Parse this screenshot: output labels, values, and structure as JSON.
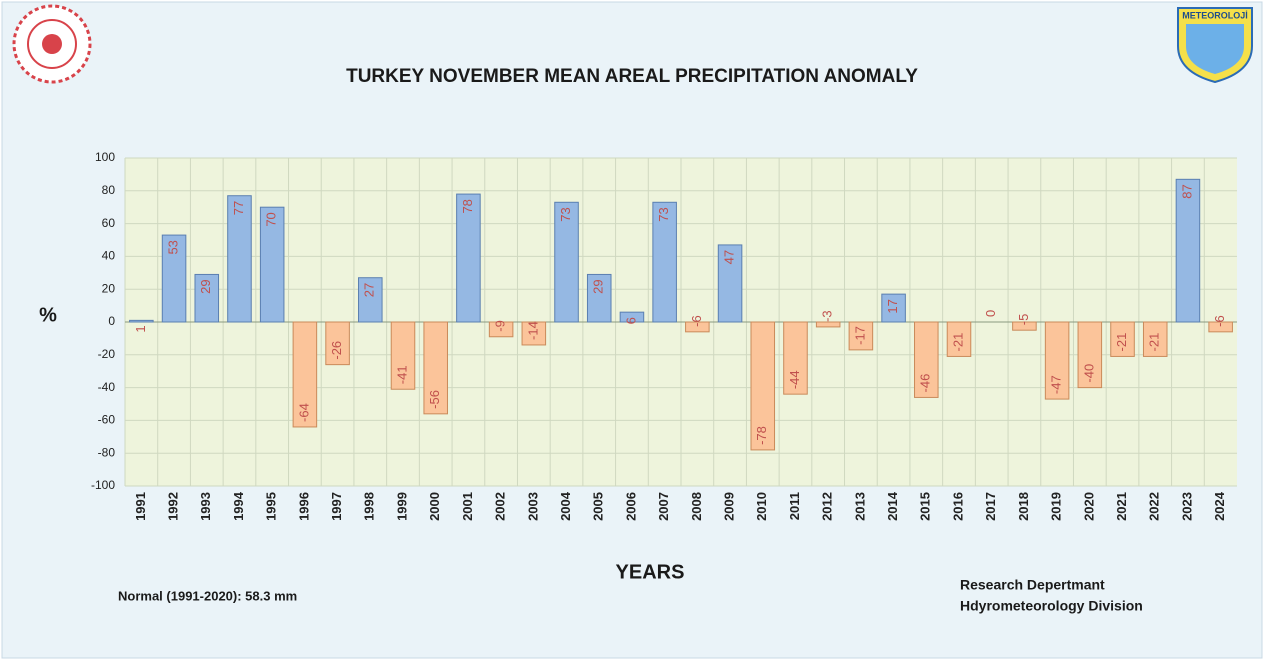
{
  "chart_data": {
    "type": "bar",
    "title": "TURKEY NOVEMBER MEAN AREAL PRECIPITATION ANOMALY",
    "y_label": "%",
    "x_label": "YEARS",
    "note": "Normal (1991-2020): 58.3 mm",
    "credit_line1": "Research Depertmant",
    "credit_line2": "Hdyrometeorology Division",
    "logo_text": "METEOROLOJİ",
    "categories": [
      "1991",
      "1992",
      "1993",
      "1994",
      "1995",
      "1996",
      "1997",
      "1998",
      "1999",
      "2000",
      "2001",
      "2002",
      "2003",
      "2004",
      "2005",
      "2006",
      "2007",
      "2008",
      "2009",
      "2010",
      "2011",
      "2012",
      "2013",
      "2014",
      "2015",
      "2016",
      "2017",
      "2018",
      "2019",
      "2020",
      "2021",
      "2022",
      "2023",
      "2024"
    ],
    "values": [
      1,
      53,
      29,
      77,
      70,
      -64,
      -26,
      27,
      -41,
      -56,
      78,
      -9,
      -14,
      73,
      29,
      6,
      73,
      -6,
      47,
      -78,
      -44,
      -3,
      -17,
      17,
      -46,
      -21,
      0,
      -5,
      -47,
      -40,
      -21,
      -21,
      87,
      -6
    ],
    "positive_color": "#95b8e3",
    "negative_color": "#fbc49a",
    "ylim": [
      -100,
      100
    ],
    "yticks": [
      -100,
      -80,
      -60,
      -40,
      -20,
      0,
      20,
      40,
      60,
      80,
      100
    ],
    "grid": true
  }
}
